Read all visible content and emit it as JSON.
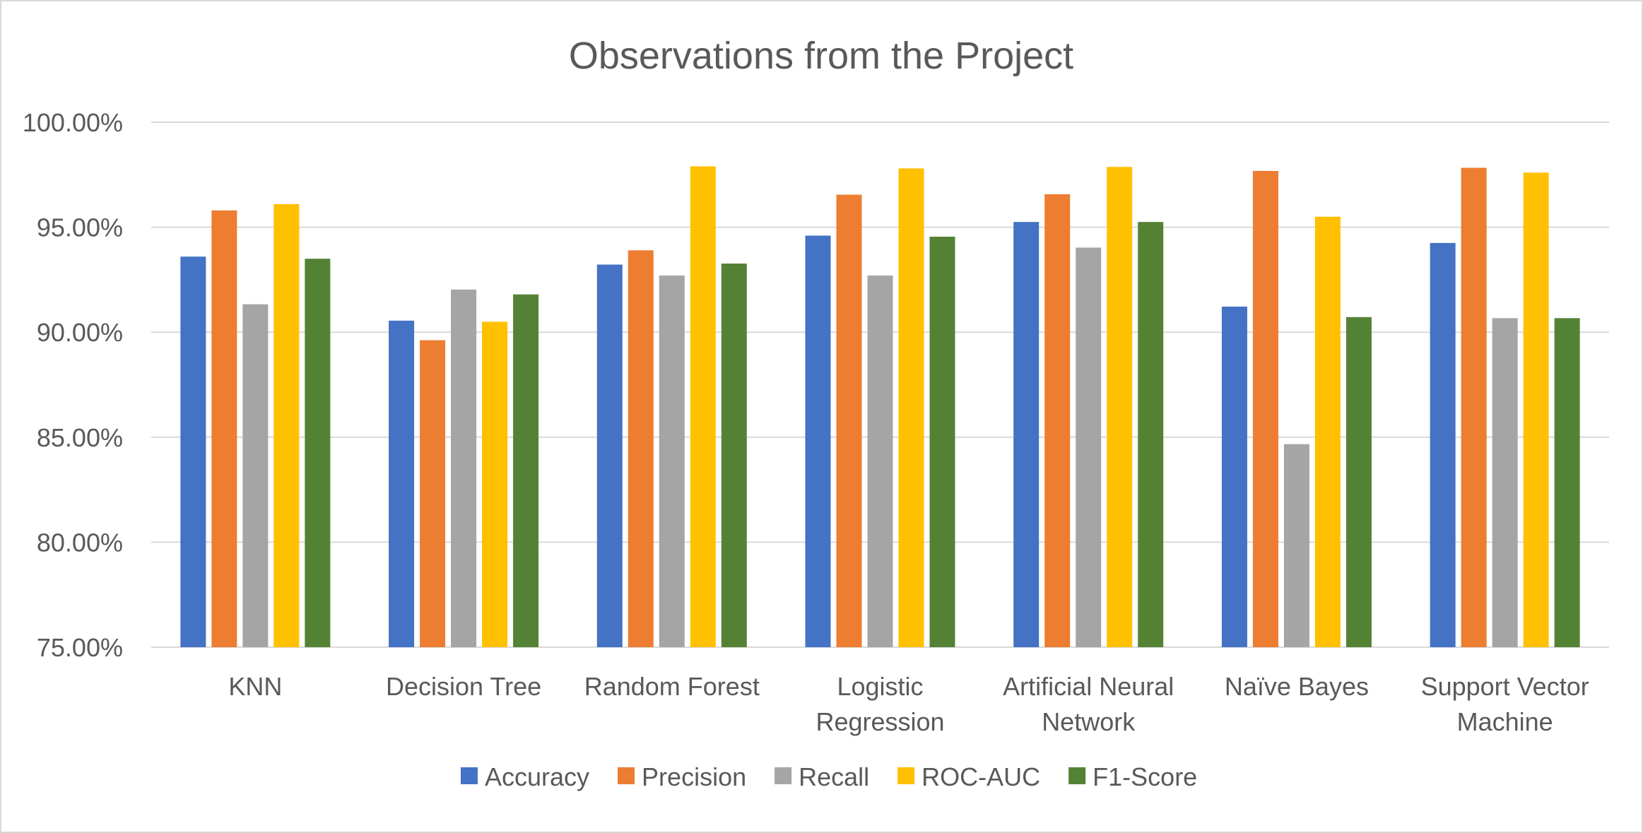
{
  "chart_data": {
    "type": "bar",
    "title": "Observations from the Project",
    "categories": [
      [
        "KNN"
      ],
      [
        "Decision Tree"
      ],
      [
        "Random Forest"
      ],
      [
        "Logistic",
        "Regression"
      ],
      [
        "Artificial Neural",
        "Network"
      ],
      [
        "Naïve Bayes"
      ],
      [
        "Support Vector",
        "Machine"
      ]
    ],
    "series": [
      {
        "name": "Accuracy",
        "color": "#4472c4",
        "values": [
          93.6,
          90.55,
          93.22,
          94.6,
          95.25,
          91.22,
          94.25
        ]
      },
      {
        "name": "Precision",
        "color": "#ed7d31",
        "values": [
          95.8,
          89.62,
          93.9,
          96.55,
          96.57,
          97.68,
          97.83
        ]
      },
      {
        "name": "Recall",
        "color": "#a5a5a5",
        "values": [
          91.33,
          92.03,
          92.7,
          92.7,
          94.03,
          84.67,
          90.67
        ]
      },
      {
        "name": "ROC-AUC",
        "color": "#ffc000",
        "values": [
          96.1,
          90.5,
          97.9,
          97.8,
          97.87,
          95.5,
          97.6
        ]
      },
      {
        "name": "F1-Score",
        "color": "#548235",
        "values": [
          93.5,
          91.8,
          93.27,
          94.55,
          95.25,
          90.72,
          90.67
        ]
      }
    ],
    "ylim": [
      75,
      100
    ],
    "yticks": [
      "75.00%",
      "80.00%",
      "85.00%",
      "90.00%",
      "95.00%",
      "100.00%"
    ],
    "ytick_values": [
      75,
      80,
      85,
      90,
      95,
      100
    ],
    "grid": true,
    "legend_position": "bottom"
  }
}
